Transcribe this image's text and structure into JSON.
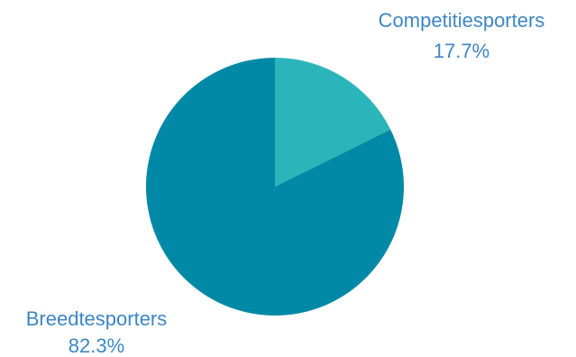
{
  "chart_data": {
    "type": "pie",
    "title": "",
    "slices": [
      {
        "label": "Competitiesporters",
        "value": 17.7,
        "value_label": "17.7%",
        "color": "#2bb5bb"
      },
      {
        "label": "Breedtesporters",
        "value": 82.3,
        "value_label": "82.3%",
        "color": "#0089a6"
      }
    ],
    "label_color": "#3d86c4",
    "start_angle_deg": 0,
    "direction": "clockwise"
  }
}
